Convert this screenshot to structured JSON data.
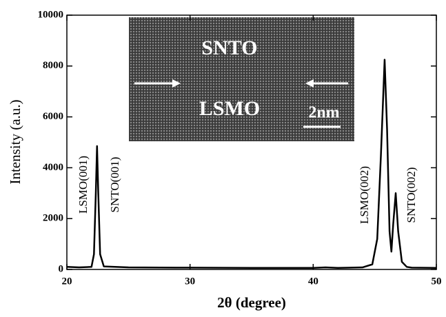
{
  "chart_data": {
    "type": "line",
    "xlabel": "2θ (degree)",
    "ylabel": "Intensity (a.u.)",
    "x": [
      20,
      21,
      22,
      22.2,
      22.35,
      22.45,
      22.55,
      22.7,
      23,
      25,
      30,
      35,
      40,
      41,
      42,
      44,
      44.8,
      45.2,
      45.5,
      45.8,
      46.0,
      46.2,
      46.35,
      46.5,
      46.7,
      46.9,
      47.2,
      47.6,
      48,
      50
    ],
    "values": [
      100,
      80,
      100,
      600,
      3000,
      4850,
      3000,
      600,
      120,
      80,
      70,
      60,
      60,
      80,
      60,
      80,
      200,
      1200,
      4500,
      8250,
      5500,
      1500,
      700,
      1800,
      3000,
      1500,
      300,
      100,
      70,
      60
    ],
    "color": "#000000",
    "xlim": [
      20,
      50
    ],
    "xticks": [
      20,
      30,
      40,
      50
    ],
    "ylim": [
      0,
      10000
    ],
    "yticks": [
      0,
      2000,
      4000,
      6000,
      8000,
      10000
    ],
    "annotations": [
      "LSMO(001)",
      "SNTO(001)",
      "LSMO(002)",
      "SNTO(002)"
    ],
    "inset_labels": [
      "SNTO",
      "LSMO",
      "2nm"
    ]
  }
}
